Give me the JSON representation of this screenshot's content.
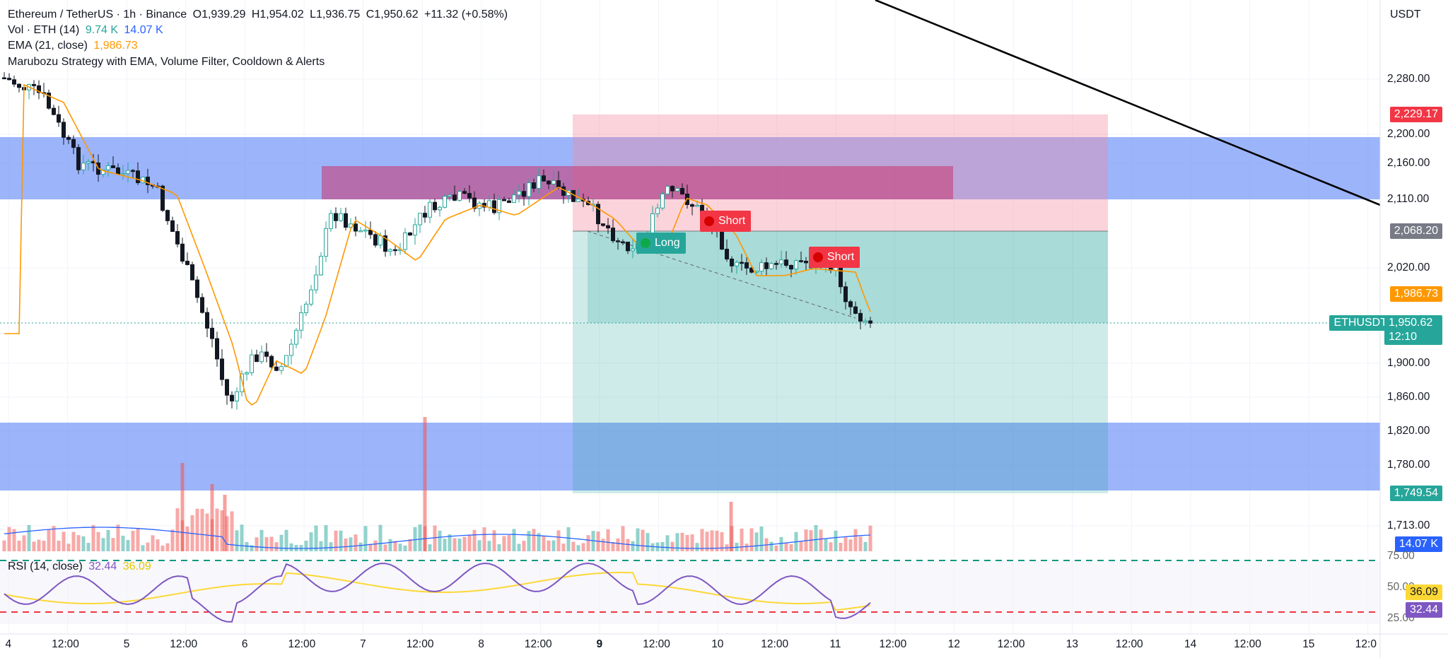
{
  "header": {
    "symbol": "Ethereum / TetherUS · 1h · Binance",
    "open": "O1,939.29",
    "high": "H1,954.02",
    "low": "L1,936.75",
    "close": "C1,950.62",
    "change": "+11.32 (+0.58%)",
    "vol_label": "Vol · ETH (14)",
    "vol_value1": "9.74 K",
    "vol_value2": "14.07 K",
    "ema_label": "EMA (21, close)",
    "ema_value": "1,986.73",
    "strategy": "Marubozu Strategy with EMA, Volume Filter, Cooldown & Alerts"
  },
  "currency": "USDT",
  "price_axis": [
    "2,280.00",
    "2,200.00",
    "2,160.00",
    "2,110.00",
    "2,020.00",
    "1,900.00",
    "1,860.00",
    "1,820.00",
    "1,780.00",
    "1,713.00"
  ],
  "price_tags": {
    "stop": "2,229.17",
    "entry": "2,068.20",
    "ema": "1,986.73",
    "symbol": "ETHUSDT",
    "last": "1,950.62",
    "countdown": "12:10",
    "target": "1,749.54",
    "volume": "14.07 K"
  },
  "rsi": {
    "label": "RSI (14, close)",
    "value": "32.44",
    "ma_value": "36.09",
    "axis_top": "75.00",
    "axis_mid": "50.00",
    "axis_bottom": "25.00"
  },
  "markers": {
    "long": "Long",
    "short1": "Short",
    "short2": "Short"
  },
  "time_axis": [
    {
      "label": "4",
      "bold": false
    },
    {
      "label": "12:00",
      "bold": false
    },
    {
      "label": "5",
      "bold": false
    },
    {
      "label": "12:00",
      "bold": false
    },
    {
      "label": "6",
      "bold": false
    },
    {
      "label": "12:00",
      "bold": false
    },
    {
      "label": "7",
      "bold": false
    },
    {
      "label": "12:00",
      "bold": false
    },
    {
      "label": "8",
      "bold": false
    },
    {
      "label": "12:00",
      "bold": false
    },
    {
      "label": "9",
      "bold": true
    },
    {
      "label": "12:00",
      "bold": false
    },
    {
      "label": "10",
      "bold": false
    },
    {
      "label": "12:00",
      "bold": false
    },
    {
      "label": "11",
      "bold": false
    },
    {
      "label": "12:00",
      "bold": false
    },
    {
      "label": "12",
      "bold": false
    },
    {
      "label": "12:00",
      "bold": false
    },
    {
      "label": "13",
      "bold": false
    },
    {
      "label": "12:00",
      "bold": false
    },
    {
      "label": "14",
      "bold": false
    },
    {
      "label": "12:00",
      "bold": false
    },
    {
      "label": "15",
      "bold": false
    },
    {
      "label": "12:0",
      "bold": false
    }
  ],
  "colors": {
    "up": "#26a69a",
    "down": "#ef5350",
    "ema": "#ff9800",
    "zone": "#6d8dfa",
    "stop_zone": "#f7a8b3",
    "target_zone": "#26a69a",
    "rsi": "#7e57c2",
    "rsi_ma": "#fdd835"
  },
  "icons": [
    "long-signal-icon",
    "short-signal-icon"
  ]
}
